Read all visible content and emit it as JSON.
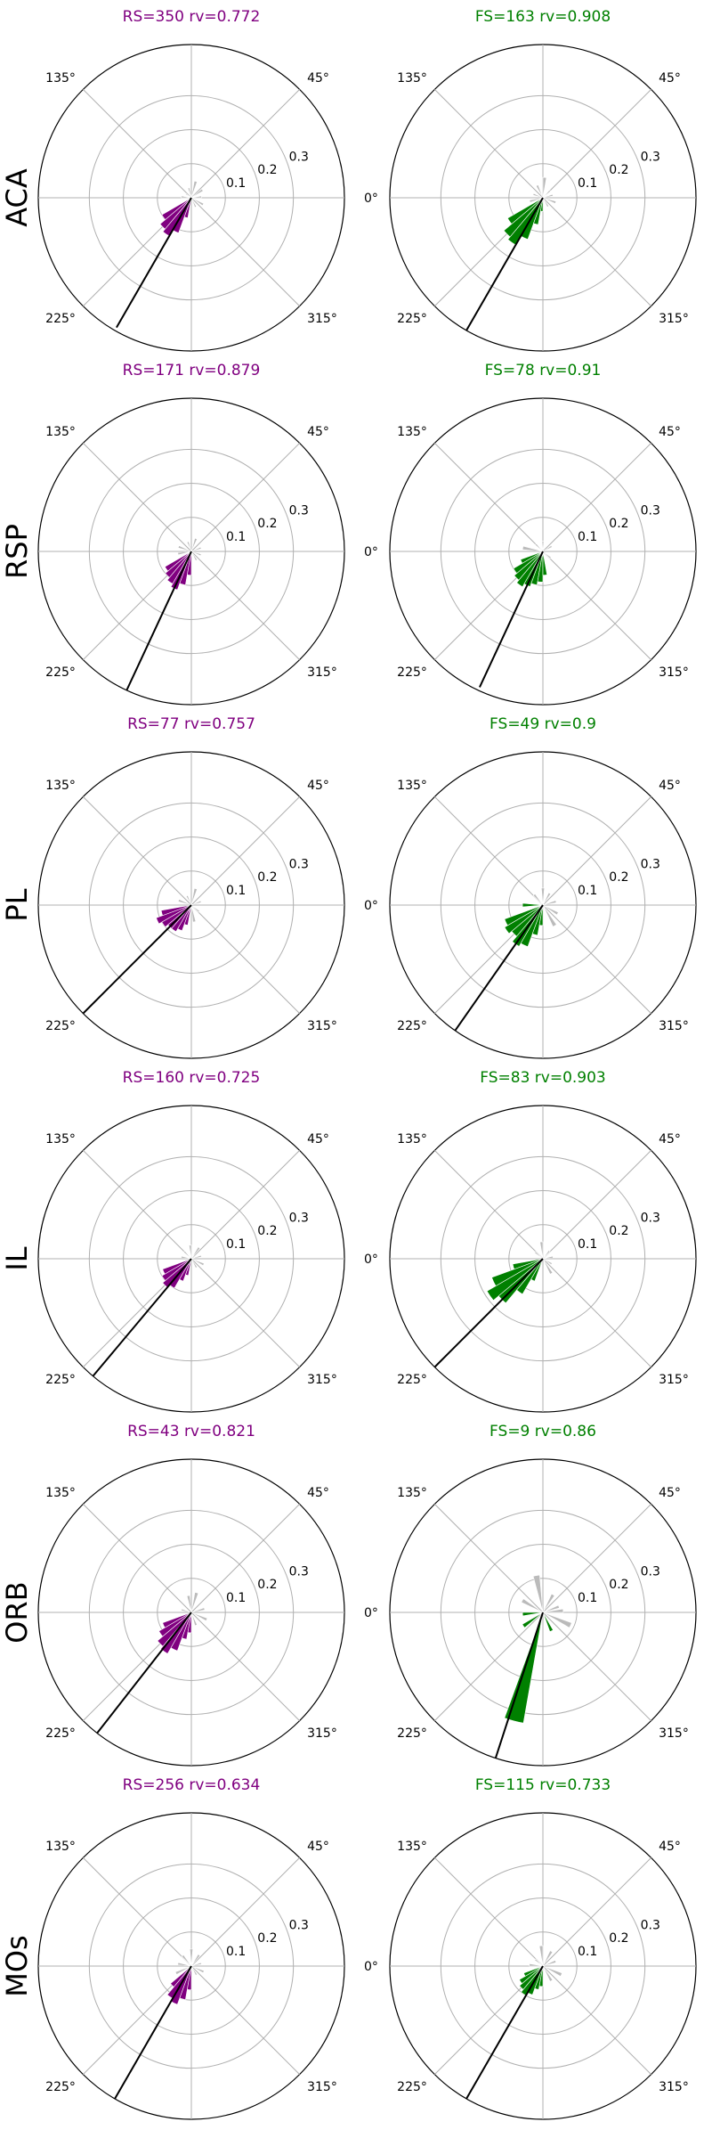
{
  "figure": {
    "colors": {
      "RS": "#800080",
      "FS": "#008000",
      "other": "#bbbbbb",
      "grid": "#b0b0b0",
      "mean_line": "#000000"
    }
  },
  "chart_data": [
    {
      "type": "polar-histogram",
      "region": "ACA",
      "cell_type": "RS",
      "title": "RS=350 rv=0.772",
      "color": "#800080",
      "radial_ticks": [
        "0.1",
        "0.2",
        "0.3"
      ],
      "rlim": [
        0,
        0.45
      ],
      "angle_ticks": [
        "0°",
        "45°",
        "135°",
        "225°",
        "315°"
      ],
      "mean_angle_deg": 240,
      "mean_length": 0.44,
      "highlight_bins": [
        {
          "theta": 215,
          "r": 0.1
        },
        {
          "theta": 225,
          "r": 0.12
        },
        {
          "theta": 235,
          "r": 0.13
        },
        {
          "theta": 245,
          "r": 0.11
        },
        {
          "theta": 255,
          "r": 0.06
        }
      ],
      "other_bins": [
        {
          "theta": 5,
          "r": 0.03
        },
        {
          "theta": 35,
          "r": 0.04
        },
        {
          "theta": 75,
          "r": 0.05
        },
        {
          "theta": 105,
          "r": 0.03
        },
        {
          "theta": 145,
          "r": 0.02
        },
        {
          "theta": 175,
          "r": 0.03
        },
        {
          "theta": 295,
          "r": 0.03
        },
        {
          "theta": 330,
          "r": 0.04
        }
      ]
    },
    {
      "type": "polar-histogram",
      "region": "ACA",
      "cell_type": "FS",
      "title": "FS=163 rv=0.908",
      "color": "#008000",
      "radial_ticks": [
        "0.1",
        "0.2",
        "0.3"
      ],
      "rlim": [
        0,
        0.45
      ],
      "angle_ticks": [
        "0°",
        "45°",
        "135°",
        "225°",
        "315°"
      ],
      "mean_angle_deg": 240,
      "mean_length": 0.45,
      "highlight_bins": [
        {
          "theta": 215,
          "r": 0.12
        },
        {
          "theta": 225,
          "r": 0.15
        },
        {
          "theta": 235,
          "r": 0.16
        },
        {
          "theta": 245,
          "r": 0.13
        },
        {
          "theta": 255,
          "r": 0.08
        },
        {
          "theta": 265,
          "r": 0.04
        }
      ],
      "other_bins": [
        {
          "theta": 15,
          "r": 0.03
        },
        {
          "theta": 45,
          "r": 0.03
        },
        {
          "theta": 85,
          "r": 0.06
        },
        {
          "theta": 115,
          "r": 0.04
        },
        {
          "theta": 160,
          "r": 0.03
        },
        {
          "theta": 195,
          "r": 0.04
        },
        {
          "theta": 300,
          "r": 0.03
        },
        {
          "theta": 340,
          "r": 0.04
        }
      ]
    },
    {
      "type": "polar-histogram",
      "region": "RSP",
      "cell_type": "RS",
      "title": "RS=171 rv=0.879",
      "color": "#800080",
      "radial_ticks": [
        "0.1",
        "0.2",
        "0.3"
      ],
      "rlim": [
        0,
        0.45
      ],
      "angle_ticks": [
        "0°",
        "45°",
        "135°",
        "225°",
        "315°"
      ],
      "mean_angle_deg": 245,
      "mean_length": 0.45,
      "highlight_bins": [
        {
          "theta": 215,
          "r": 0.09
        },
        {
          "theta": 225,
          "r": 0.1
        },
        {
          "theta": 235,
          "r": 0.11
        },
        {
          "theta": 245,
          "r": 0.12
        },
        {
          "theta": 255,
          "r": 0.1
        },
        {
          "theta": 265,
          "r": 0.07
        }
      ],
      "other_bins": [
        {
          "theta": 20,
          "r": 0.03
        },
        {
          "theta": 70,
          "r": 0.04
        },
        {
          "theta": 110,
          "r": 0.03
        },
        {
          "theta": 160,
          "r": 0.04
        },
        {
          "theta": 190,
          "r": 0.04
        },
        {
          "theta": 300,
          "r": 0.03
        },
        {
          "theta": 340,
          "r": 0.03
        }
      ]
    },
    {
      "type": "polar-histogram",
      "region": "RSP",
      "cell_type": "FS",
      "title": "FS=78 rv=0.91",
      "color": "#008000",
      "radial_ticks": [
        "0.1",
        "0.2",
        "0.3"
      ],
      "rlim": [
        0,
        0.45
      ],
      "angle_ticks": [
        "0°",
        "45°",
        "135°",
        "225°",
        "315°"
      ],
      "mean_angle_deg": 245,
      "mean_length": 0.44,
      "highlight_bins": [
        {
          "theta": 205,
          "r": 0.07
        },
        {
          "theta": 215,
          "r": 0.1
        },
        {
          "theta": 225,
          "r": 0.11
        },
        {
          "theta": 235,
          "r": 0.12
        },
        {
          "theta": 245,
          "r": 0.11
        },
        {
          "theta": 255,
          "r": 0.1
        },
        {
          "theta": 265,
          "r": 0.09
        },
        {
          "theta": 275,
          "r": 0.07
        }
      ],
      "other_bins": [
        {
          "theta": 30,
          "r": 0.03
        },
        {
          "theta": 90,
          "r": 0.03
        },
        {
          "theta": 135,
          "r": 0.03
        },
        {
          "theta": 170,
          "r": 0.06
        },
        {
          "theta": 320,
          "r": 0.03
        }
      ]
    },
    {
      "type": "polar-histogram",
      "region": "PL",
      "cell_type": "RS",
      "title": "RS=77 rv=0.757",
      "color": "#800080",
      "radial_ticks": [
        "0.1",
        "0.2",
        "0.3"
      ],
      "rlim": [
        0,
        0.45
      ],
      "angle_ticks": [
        "0°",
        "45°",
        "135°",
        "225°",
        "315°"
      ],
      "mean_angle_deg": 225,
      "mean_length": 0.45,
      "highlight_bins": [
        {
          "theta": 195,
          "r": 0.09
        },
        {
          "theta": 205,
          "r": 0.11
        },
        {
          "theta": 215,
          "r": 0.1
        },
        {
          "theta": 225,
          "r": 0.09
        },
        {
          "theta": 235,
          "r": 0.09
        },
        {
          "theta": 245,
          "r": 0.08
        },
        {
          "theta": 255,
          "r": 0.06
        }
      ],
      "other_bins": [
        {
          "theta": 20,
          "r": 0.03
        },
        {
          "theta": 75,
          "r": 0.05
        },
        {
          "theta": 115,
          "r": 0.03
        },
        {
          "theta": 160,
          "r": 0.04
        },
        {
          "theta": 280,
          "r": 0.05
        },
        {
          "theta": 320,
          "r": 0.03
        }
      ]
    },
    {
      "type": "polar-histogram",
      "region": "PL",
      "cell_type": "FS",
      "title": "FS=49 rv=0.9",
      "color": "#008000",
      "radial_ticks": [
        "0.1",
        "0.2",
        "0.3"
      ],
      "rlim": [
        0,
        0.45
      ],
      "angle_ticks": [
        "0°",
        "45°",
        "135°",
        "225°",
        "315°"
      ],
      "mean_angle_deg": 235,
      "mean_length": 0.45,
      "highlight_bins": [
        {
          "theta": 205,
          "r": 0.12
        },
        {
          "theta": 215,
          "r": 0.13
        },
        {
          "theta": 225,
          "r": 0.12
        },
        {
          "theta": 235,
          "r": 0.14
        },
        {
          "theta": 245,
          "r": 0.13
        },
        {
          "theta": 255,
          "r": 0.09
        },
        {
          "theta": 265,
          "r": 0.06
        },
        {
          "theta": 180,
          "r": 0.06
        }
      ],
      "other_bins": [
        {
          "theta": 15,
          "r": 0.04
        },
        {
          "theta": 60,
          "r": 0.04
        },
        {
          "theta": 90,
          "r": 0.05
        },
        {
          "theta": 130,
          "r": 0.04
        },
        {
          "theta": 300,
          "r": 0.07
        },
        {
          "theta": 330,
          "r": 0.05
        }
      ]
    },
    {
      "type": "polar-histogram",
      "region": "IL",
      "cell_type": "RS",
      "title": "RS=160 rv=0.725",
      "color": "#800080",
      "radial_ticks": [
        "0.1",
        "0.2",
        "0.3"
      ],
      "rlim": [
        0,
        0.45
      ],
      "angle_ticks": [
        "0°",
        "45°",
        "135°",
        "225°",
        "315°"
      ],
      "mean_angle_deg": 230,
      "mean_length": 0.45,
      "highlight_bins": [
        {
          "theta": 205,
          "r": 0.09
        },
        {
          "theta": 215,
          "r": 0.1
        },
        {
          "theta": 225,
          "r": 0.11
        },
        {
          "theta": 235,
          "r": 0.1
        },
        {
          "theta": 245,
          "r": 0.07
        },
        {
          "theta": 255,
          "r": 0.05
        }
      ],
      "other_bins": [
        {
          "theta": 15,
          "r": 0.03
        },
        {
          "theta": 55,
          "r": 0.04
        },
        {
          "theta": 95,
          "r": 0.04
        },
        {
          "theta": 135,
          "r": 0.03
        },
        {
          "theta": 170,
          "r": 0.03
        },
        {
          "theta": 300,
          "r": 0.03
        },
        {
          "theta": 335,
          "r": 0.04
        }
      ]
    },
    {
      "type": "polar-histogram",
      "region": "IL",
      "cell_type": "FS",
      "title": "FS=83 rv=0.903",
      "color": "#008000",
      "radial_ticks": [
        "0.1",
        "0.2",
        "0.3"
      ],
      "rlim": [
        0,
        0.45
      ],
      "angle_ticks": [
        "0°",
        "45°",
        "135°",
        "225°",
        "315°"
      ],
      "mean_angle_deg": 225,
      "mean_length": 0.45,
      "highlight_bins": [
        {
          "theta": 195,
          "r": 0.09
        },
        {
          "theta": 205,
          "r": 0.16
        },
        {
          "theta": 215,
          "r": 0.19
        },
        {
          "theta": 225,
          "r": 0.17
        },
        {
          "theta": 235,
          "r": 0.12
        },
        {
          "theta": 245,
          "r": 0.07
        }
      ],
      "other_bins": [
        {
          "theta": 10,
          "r": 0.03
        },
        {
          "theta": 50,
          "r": 0.03
        },
        {
          "theta": 95,
          "r": 0.05
        },
        {
          "theta": 140,
          "r": 0.03
        },
        {
          "theta": 300,
          "r": 0.05
        },
        {
          "theta": 330,
          "r": 0.03
        }
      ]
    },
    {
      "type": "polar-histogram",
      "region": "ORB",
      "cell_type": "RS",
      "title": "RS=43 rv=0.821",
      "color": "#800080",
      "radial_ticks": [
        "0.1",
        "0.2",
        "0.3"
      ],
      "rlim": [
        0,
        0.45
      ],
      "angle_ticks": [
        "0°",
        "45°",
        "135°",
        "225°",
        "315°"
      ],
      "mean_angle_deg": 232,
      "mean_length": 0.45,
      "highlight_bins": [
        {
          "theta": 205,
          "r": 0.09
        },
        {
          "theta": 215,
          "r": 0.11
        },
        {
          "theta": 225,
          "r": 0.13
        },
        {
          "theta": 235,
          "r": 0.14
        },
        {
          "theta": 245,
          "r": 0.12
        },
        {
          "theta": 255,
          "r": 0.08
        },
        {
          "theta": 265,
          "r": 0.06
        }
      ],
      "other_bins": [
        {
          "theta": 15,
          "r": 0.04
        },
        {
          "theta": 75,
          "r": 0.06
        },
        {
          "theta": 100,
          "r": 0.05
        },
        {
          "theta": 165,
          "r": 0.03
        },
        {
          "theta": 290,
          "r": 0.04
        },
        {
          "theta": 335,
          "r": 0.05
        }
      ]
    },
    {
      "type": "polar-histogram",
      "region": "ORB",
      "cell_type": "FS",
      "title": "FS=9 rv=0.86",
      "color": "#008000",
      "radial_ticks": [
        "0.1",
        "0.2",
        "0.3"
      ],
      "rlim": [
        0,
        0.45
      ],
      "angle_ticks": [
        "0°",
        "45°",
        "135°",
        "225°",
        "315°"
      ],
      "mean_angle_deg": 252,
      "mean_length": 0.45,
      "highlight_bins": [
        {
          "theta": 255,
          "r": 0.33
        },
        {
          "theta": 215,
          "r": 0.07
        },
        {
          "theta": 185,
          "r": 0.06
        },
        {
          "theta": 295,
          "r": 0.06
        }
      ],
      "other_bins": [
        {
          "theta": 20,
          "r": 0.05
        },
        {
          "theta": 60,
          "r": 0.06
        },
        {
          "theta": 100,
          "r": 0.11
        },
        {
          "theta": 150,
          "r": 0.07
        },
        {
          "theta": 335,
          "r": 0.09
        },
        {
          "theta": 5,
          "r": 0.06
        }
      ]
    },
    {
      "type": "polar-histogram",
      "region": "MOs",
      "cell_type": "RS",
      "title": "RS=256 rv=0.634",
      "color": "#800080",
      "radial_ticks": [
        "0.1",
        "0.2",
        "0.3"
      ],
      "rlim": [
        0,
        0.45
      ],
      "angle_ticks": [
        "0°",
        "45°",
        "135°",
        "225°",
        "315°"
      ],
      "mean_angle_deg": 240,
      "mean_length": 0.45,
      "highlight_bins": [
        {
          "theta": 225,
          "r": 0.08
        },
        {
          "theta": 235,
          "r": 0.11
        },
        {
          "theta": 245,
          "r": 0.12
        },
        {
          "theta": 255,
          "r": 0.1
        },
        {
          "theta": 265,
          "r": 0.07
        }
      ],
      "other_bins": [
        {
          "theta": 15,
          "r": 0.03
        },
        {
          "theta": 55,
          "r": 0.04
        },
        {
          "theta": 90,
          "r": 0.05
        },
        {
          "theta": 130,
          "r": 0.04
        },
        {
          "theta": 170,
          "r": 0.04
        },
        {
          "theta": 205,
          "r": 0.05
        },
        {
          "theta": 300,
          "r": 0.03
        },
        {
          "theta": 335,
          "r": 0.04
        }
      ]
    },
    {
      "type": "polar-histogram",
      "region": "MOs",
      "cell_type": "FS",
      "title": "FS=115 rv=0.733",
      "color": "#008000",
      "radial_ticks": [
        "0.1",
        "0.2",
        "0.3"
      ],
      "rlim": [
        0,
        0.45
      ],
      "angle_ticks": [
        "0°",
        "45°",
        "135°",
        "225°",
        "315°"
      ],
      "mean_angle_deg": 240,
      "mean_length": 0.45,
      "highlight_bins": [
        {
          "theta": 205,
          "r": 0.06
        },
        {
          "theta": 215,
          "r": 0.08
        },
        {
          "theta": 225,
          "r": 0.09
        },
        {
          "theta": 235,
          "r": 0.1
        },
        {
          "theta": 245,
          "r": 0.09
        },
        {
          "theta": 255,
          "r": 0.07
        },
        {
          "theta": 265,
          "r": 0.06
        }
      ],
      "other_bins": [
        {
          "theta": 20,
          "r": 0.04
        },
        {
          "theta": 60,
          "r": 0.05
        },
        {
          "theta": 95,
          "r": 0.06
        },
        {
          "theta": 140,
          "r": 0.03
        },
        {
          "theta": 175,
          "r": 0.04
        },
        {
          "theta": 300,
          "r": 0.05
        },
        {
          "theta": 335,
          "r": 0.06
        }
      ]
    }
  ]
}
